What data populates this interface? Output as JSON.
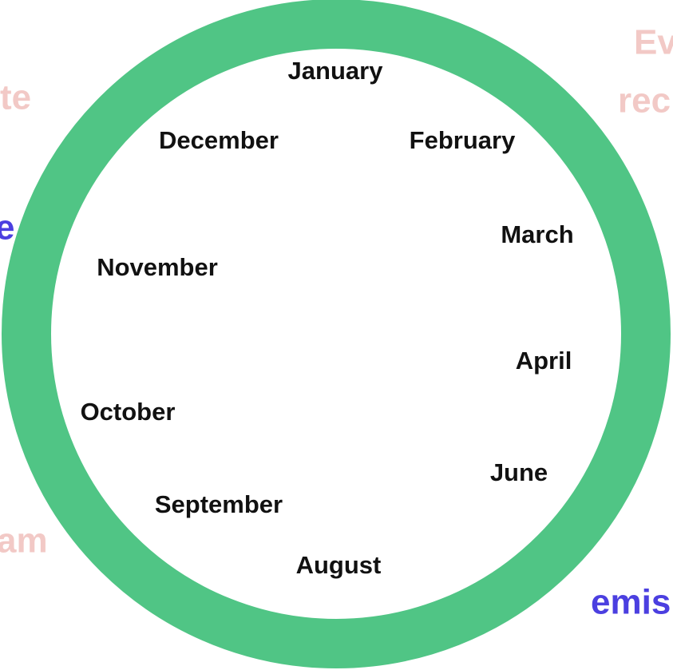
{
  "months": [
    "January",
    "February",
    "March",
    "April",
    "June",
    "August",
    "September",
    "October",
    "November",
    "December"
  ],
  "fragments": [
    "te",
    "Ev",
    "rec",
    "e",
    "am",
    "emis"
  ]
}
